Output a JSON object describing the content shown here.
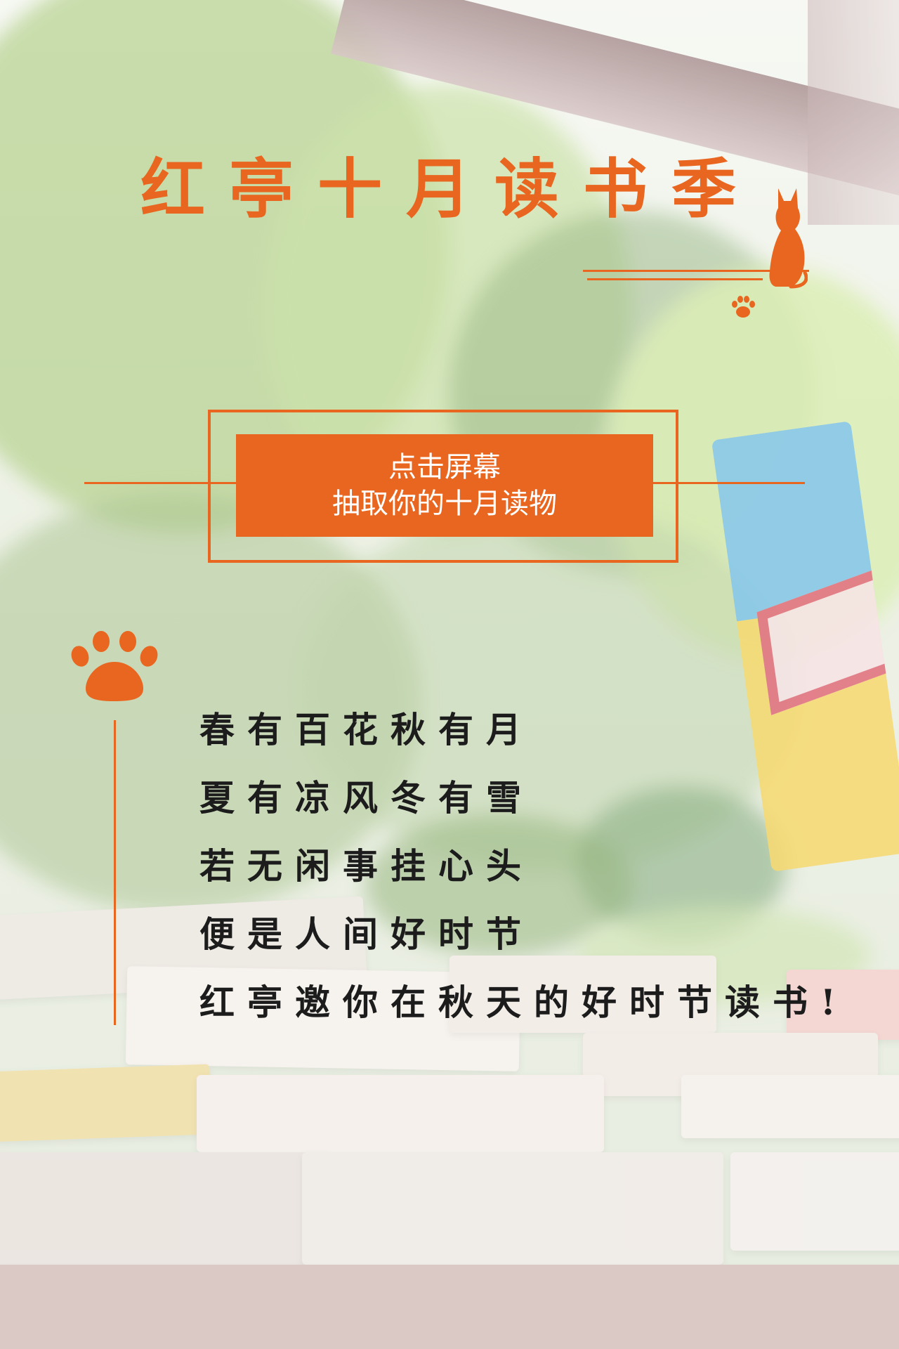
{
  "page": {
    "title": "红亭十月读书季",
    "accent_color": "#e8661f",
    "text_color": "#1c1c1c"
  },
  "cta": {
    "line1": "点击屏幕",
    "line2": "抽取你的十月读物"
  },
  "poem": {
    "lines": [
      "春有百花秋有月",
      "夏有凉风冬有雪",
      "若无闲事挂心头",
      "便是人间好时节",
      "红亭邀你在秋天的好时节读书!"
    ]
  },
  "icons": {
    "cat": "cat-silhouette-icon",
    "paw_small": "paw-print-icon",
    "paw_large": "paw-print-icon"
  }
}
